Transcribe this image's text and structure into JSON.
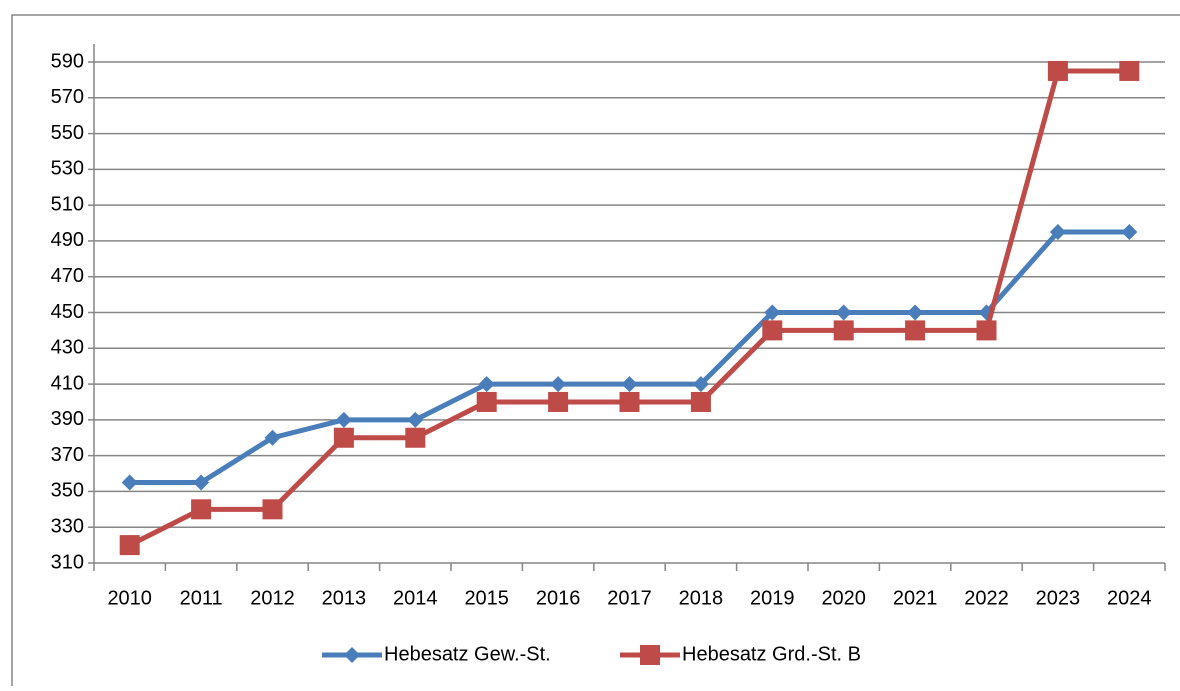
{
  "chart_data": {
    "type": "line",
    "categories": [
      "2010",
      "2011",
      "2012",
      "2013",
      "2014",
      "2015",
      "2016",
      "2017",
      "2018",
      "2019",
      "2020",
      "2021",
      "2022",
      "2023",
      "2024"
    ],
    "series": [
      {
        "name": "Hebesatz Gew.-St.",
        "color": "#4a7ebb",
        "marker": "diamond",
        "values": [
          355,
          355,
          380,
          390,
          390,
          410,
          410,
          410,
          410,
          450,
          450,
          450,
          450,
          495,
          495
        ]
      },
      {
        "name": "Hebesatz Grd.-St. B",
        "color": "#be4b48",
        "marker": "square",
        "values": [
          320,
          340,
          340,
          380,
          380,
          400,
          400,
          400,
          400,
          440,
          440,
          440,
          440,
          585,
          585
        ]
      }
    ],
    "ylim": [
      310,
      590
    ],
    "yticks": [
      310,
      330,
      350,
      370,
      390,
      410,
      430,
      450,
      470,
      490,
      510,
      530,
      550,
      570,
      590
    ],
    "grid": true,
    "legend": "bottom"
  }
}
